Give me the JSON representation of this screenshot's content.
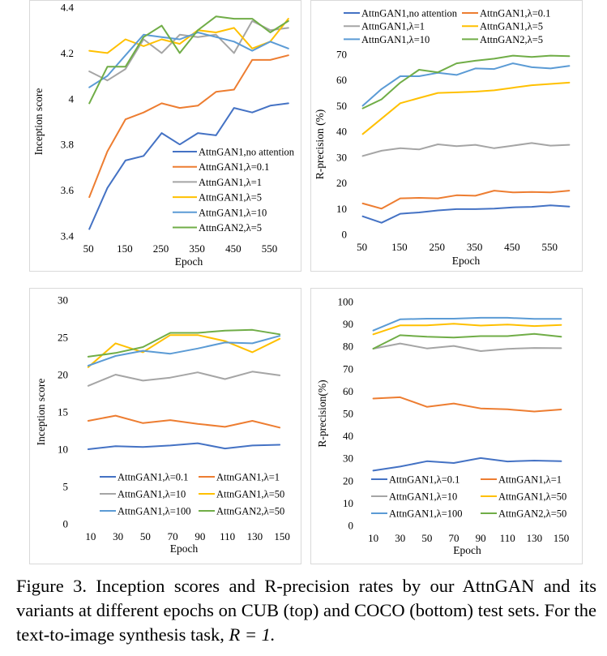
{
  "caption": {
    "prefix": "Figure 3. Inception scores and R-precision rates by our AttnGAN and its variants at different epochs on CUB (top) and COCO (bottom) test sets. For the text-to-image synthesis task,",
    "equation": "R = 1."
  },
  "chart_data": [
    {
      "type": "line",
      "id": "cub-is",
      "title": "",
      "xlabel": "Epoch",
      "ylabel": "Inception score",
      "x": [
        50,
        100,
        150,
        200,
        250,
        300,
        350,
        400,
        450,
        500,
        550,
        600
      ],
      "x_ticks": [
        50,
        150,
        250,
        350,
        450,
        550
      ],
      "xlim": [
        25,
        625
      ],
      "ylim": [
        3.4,
        4.4
      ],
      "y_ticks": [
        "3.4",
        "3.6",
        "3.8",
        "4",
        "4.2",
        "4.4"
      ],
      "grid": false,
      "legend": "lower-right",
      "series": [
        {
          "name": "AttnGAN1,no attention",
          "color": "#4472c4",
          "values": [
            3.43,
            3.61,
            3.73,
            3.75,
            3.85,
            3.8,
            3.85,
            3.84,
            3.96,
            3.94,
            3.97,
            3.98
          ]
        },
        {
          "name": "AttnGAN1,λ=0.1",
          "color": "#ed7d31",
          "values": [
            3.57,
            3.77,
            3.91,
            3.94,
            3.98,
            3.96,
            3.97,
            4.03,
            4.04,
            4.17,
            4.17,
            4.19
          ]
        },
        {
          "name": "AttnGAN1,λ=1",
          "color": "#a5a5a5",
          "values": [
            4.12,
            4.08,
            4.13,
            4.26,
            4.2,
            4.28,
            4.27,
            4.28,
            4.2,
            4.34,
            4.3,
            4.31
          ]
        },
        {
          "name": "AttnGAN1,λ=5",
          "color": "#ffc000",
          "values": [
            4.21,
            4.2,
            4.26,
            4.23,
            4.26,
            4.24,
            4.3,
            4.29,
            4.31,
            4.22,
            4.25,
            4.35
          ]
        },
        {
          "name": "AttnGAN1,λ=10",
          "color": "#5b9bd5",
          "values": [
            4.05,
            4.1,
            4.19,
            4.28,
            4.27,
            4.26,
            4.29,
            4.27,
            4.25,
            4.21,
            4.25,
            4.22
          ]
        },
        {
          "name": "AttnGAN2,λ=5",
          "color": "#70ad47",
          "values": [
            3.98,
            4.14,
            4.14,
            4.27,
            4.32,
            4.2,
            4.3,
            4.36,
            4.35,
            4.35,
            4.29,
            4.34
          ]
        }
      ]
    },
    {
      "type": "line",
      "id": "cub-rp",
      "title": "",
      "xlabel": "Epoch",
      "ylabel": "R-precision (%)",
      "x": [
        50,
        100,
        150,
        200,
        250,
        300,
        350,
        400,
        450,
        500,
        550,
        600
      ],
      "x_ticks": [
        50,
        150,
        250,
        350,
        450,
        550
      ],
      "xlim": [
        25,
        625
      ],
      "ylim": [
        0,
        70
      ],
      "y_ticks": [
        "0",
        "10",
        "20",
        "30",
        "40",
        "50",
        "60",
        "70"
      ],
      "grid": false,
      "legend": "top",
      "series": [
        {
          "name": "AttnGAN1,no attention",
          "color": "#4472c4",
          "values": [
            7,
            4.5,
            8,
            8.5,
            9.3,
            9.8,
            9.8,
            10,
            10.5,
            10.7,
            11.3,
            10.8
          ]
        },
        {
          "name": "AttnGAN1,λ=0.1",
          "color": "#ed7d31",
          "values": [
            12,
            10,
            14,
            14.2,
            14,
            15.2,
            15,
            17,
            16.3,
            16.5,
            16.3,
            17
          ]
        },
        {
          "name": "AttnGAN1,λ=1",
          "color": "#a5a5a5",
          "values": [
            30.5,
            32.5,
            33.5,
            33,
            35,
            34.3,
            34.8,
            33.5,
            34.5,
            35.5,
            34.5,
            34.8
          ]
        },
        {
          "name": "AttnGAN1,λ=5",
          "color": "#ffc000",
          "values": [
            39,
            45,
            51,
            53,
            55,
            55.2,
            55.5,
            56,
            57,
            58,
            58.5,
            59
          ]
        },
        {
          "name": "AttnGAN1,λ=10",
          "color": "#5b9bd5",
          "values": [
            50,
            56.5,
            61.5,
            61.5,
            62.8,
            62,
            64.5,
            64.3,
            66.5,
            65,
            64.5,
            65.5
          ]
        },
        {
          "name": "AttnGAN2,λ=5",
          "color": "#70ad47",
          "values": [
            49,
            52.5,
            59,
            64,
            63,
            66.5,
            67.5,
            68.3,
            69.5,
            69,
            69.5,
            69.3
          ]
        }
      ]
    },
    {
      "type": "line",
      "id": "coco-is",
      "title": "",
      "xlabel": "Epoch",
      "ylabel": "Inception score",
      "x": [
        10,
        30,
        50,
        70,
        90,
        110,
        130,
        150
      ],
      "x_ticks": [
        10,
        30,
        50,
        70,
        90,
        110,
        130,
        150
      ],
      "xlim": [
        0,
        160
      ],
      "ylim": [
        0,
        30
      ],
      "y_ticks": [
        "0",
        "5",
        "10",
        "15",
        "20",
        "25",
        "30"
      ],
      "grid": false,
      "legend": "bottom",
      "series": [
        {
          "name": "AttnGAN1,λ=0.1",
          "color": "#4472c4",
          "values": [
            10,
            10.4,
            10.3,
            10.5,
            10.8,
            10.1,
            10.5,
            10.6
          ]
        },
        {
          "name": "AttnGAN1,λ=1",
          "color": "#ed7d31",
          "values": [
            13.8,
            14.5,
            13.5,
            13.9,
            13.4,
            13,
            13.8,
            12.9
          ]
        },
        {
          "name": "AttnGAN1,λ=10",
          "color": "#a5a5a5",
          "values": [
            18.5,
            20,
            19.2,
            19.6,
            20.3,
            19.4,
            20.4,
            19.9
          ]
        },
        {
          "name": "AttnGAN1,λ=50",
          "color": "#ffc000",
          "values": [
            21,
            24.2,
            23,
            25.3,
            25.3,
            24.5,
            23,
            24.8
          ]
        },
        {
          "name": "AttnGAN1,λ=100",
          "color": "#5b9bd5",
          "values": [
            21.2,
            22.5,
            23.2,
            22.8,
            23.5,
            24.3,
            24.2,
            25.2
          ]
        },
        {
          "name": "AttnGAN2,λ=50",
          "color": "#70ad47",
          "values": [
            22.4,
            22.9,
            23.7,
            25.6,
            25.6,
            25.9,
            26,
            25.4
          ]
        }
      ]
    },
    {
      "type": "line",
      "id": "coco-rp",
      "title": "",
      "xlabel": "Epoch",
      "ylabel": "R-precision(%)",
      "x": [
        10,
        30,
        50,
        70,
        90,
        110,
        130,
        150
      ],
      "x_ticks": [
        10,
        30,
        50,
        70,
        90,
        110,
        130,
        150
      ],
      "xlim": [
        0,
        160
      ],
      "ylim": [
        0,
        100
      ],
      "y_ticks": [
        "0",
        "10",
        "20",
        "30",
        "40",
        "50",
        "60",
        "70",
        "80",
        "90",
        "100"
      ],
      "grid": false,
      "legend": "bottom",
      "series": [
        {
          "name": "AttnGAN1,λ=0.1",
          "color": "#4472c4",
          "values": [
            24.5,
            26.3,
            28.7,
            27.9,
            30.1,
            28.6,
            29,
            28.7
          ]
        },
        {
          "name": "AttnGAN1,λ=1",
          "color": "#ed7d31",
          "values": [
            56.7,
            57.3,
            53,
            54.5,
            52.3,
            51.9,
            50.9,
            51.8
          ]
        },
        {
          "name": "AttnGAN1,λ=10",
          "color": "#a5a5a5",
          "values": [
            79,
            81.3,
            79.1,
            80.2,
            77.9,
            78.9,
            79.3,
            79.2
          ]
        },
        {
          "name": "AttnGAN1,λ=50",
          "color": "#ffc000",
          "values": [
            85.4,
            89.4,
            89.4,
            90.1,
            89.3,
            89.8,
            89.1,
            89.6
          ]
        },
        {
          "name": "AttnGAN1,λ=100",
          "color": "#5b9bd5",
          "values": [
            87.1,
            92.1,
            92.4,
            92.4,
            92.8,
            92.8,
            92.3,
            92.3
          ]
        },
        {
          "name": "AttnGAN2,λ=50",
          "color": "#70ad47",
          "values": [
            79,
            85,
            84.3,
            84,
            84.6,
            84.6,
            85.6,
            84.3
          ]
        }
      ]
    }
  ]
}
